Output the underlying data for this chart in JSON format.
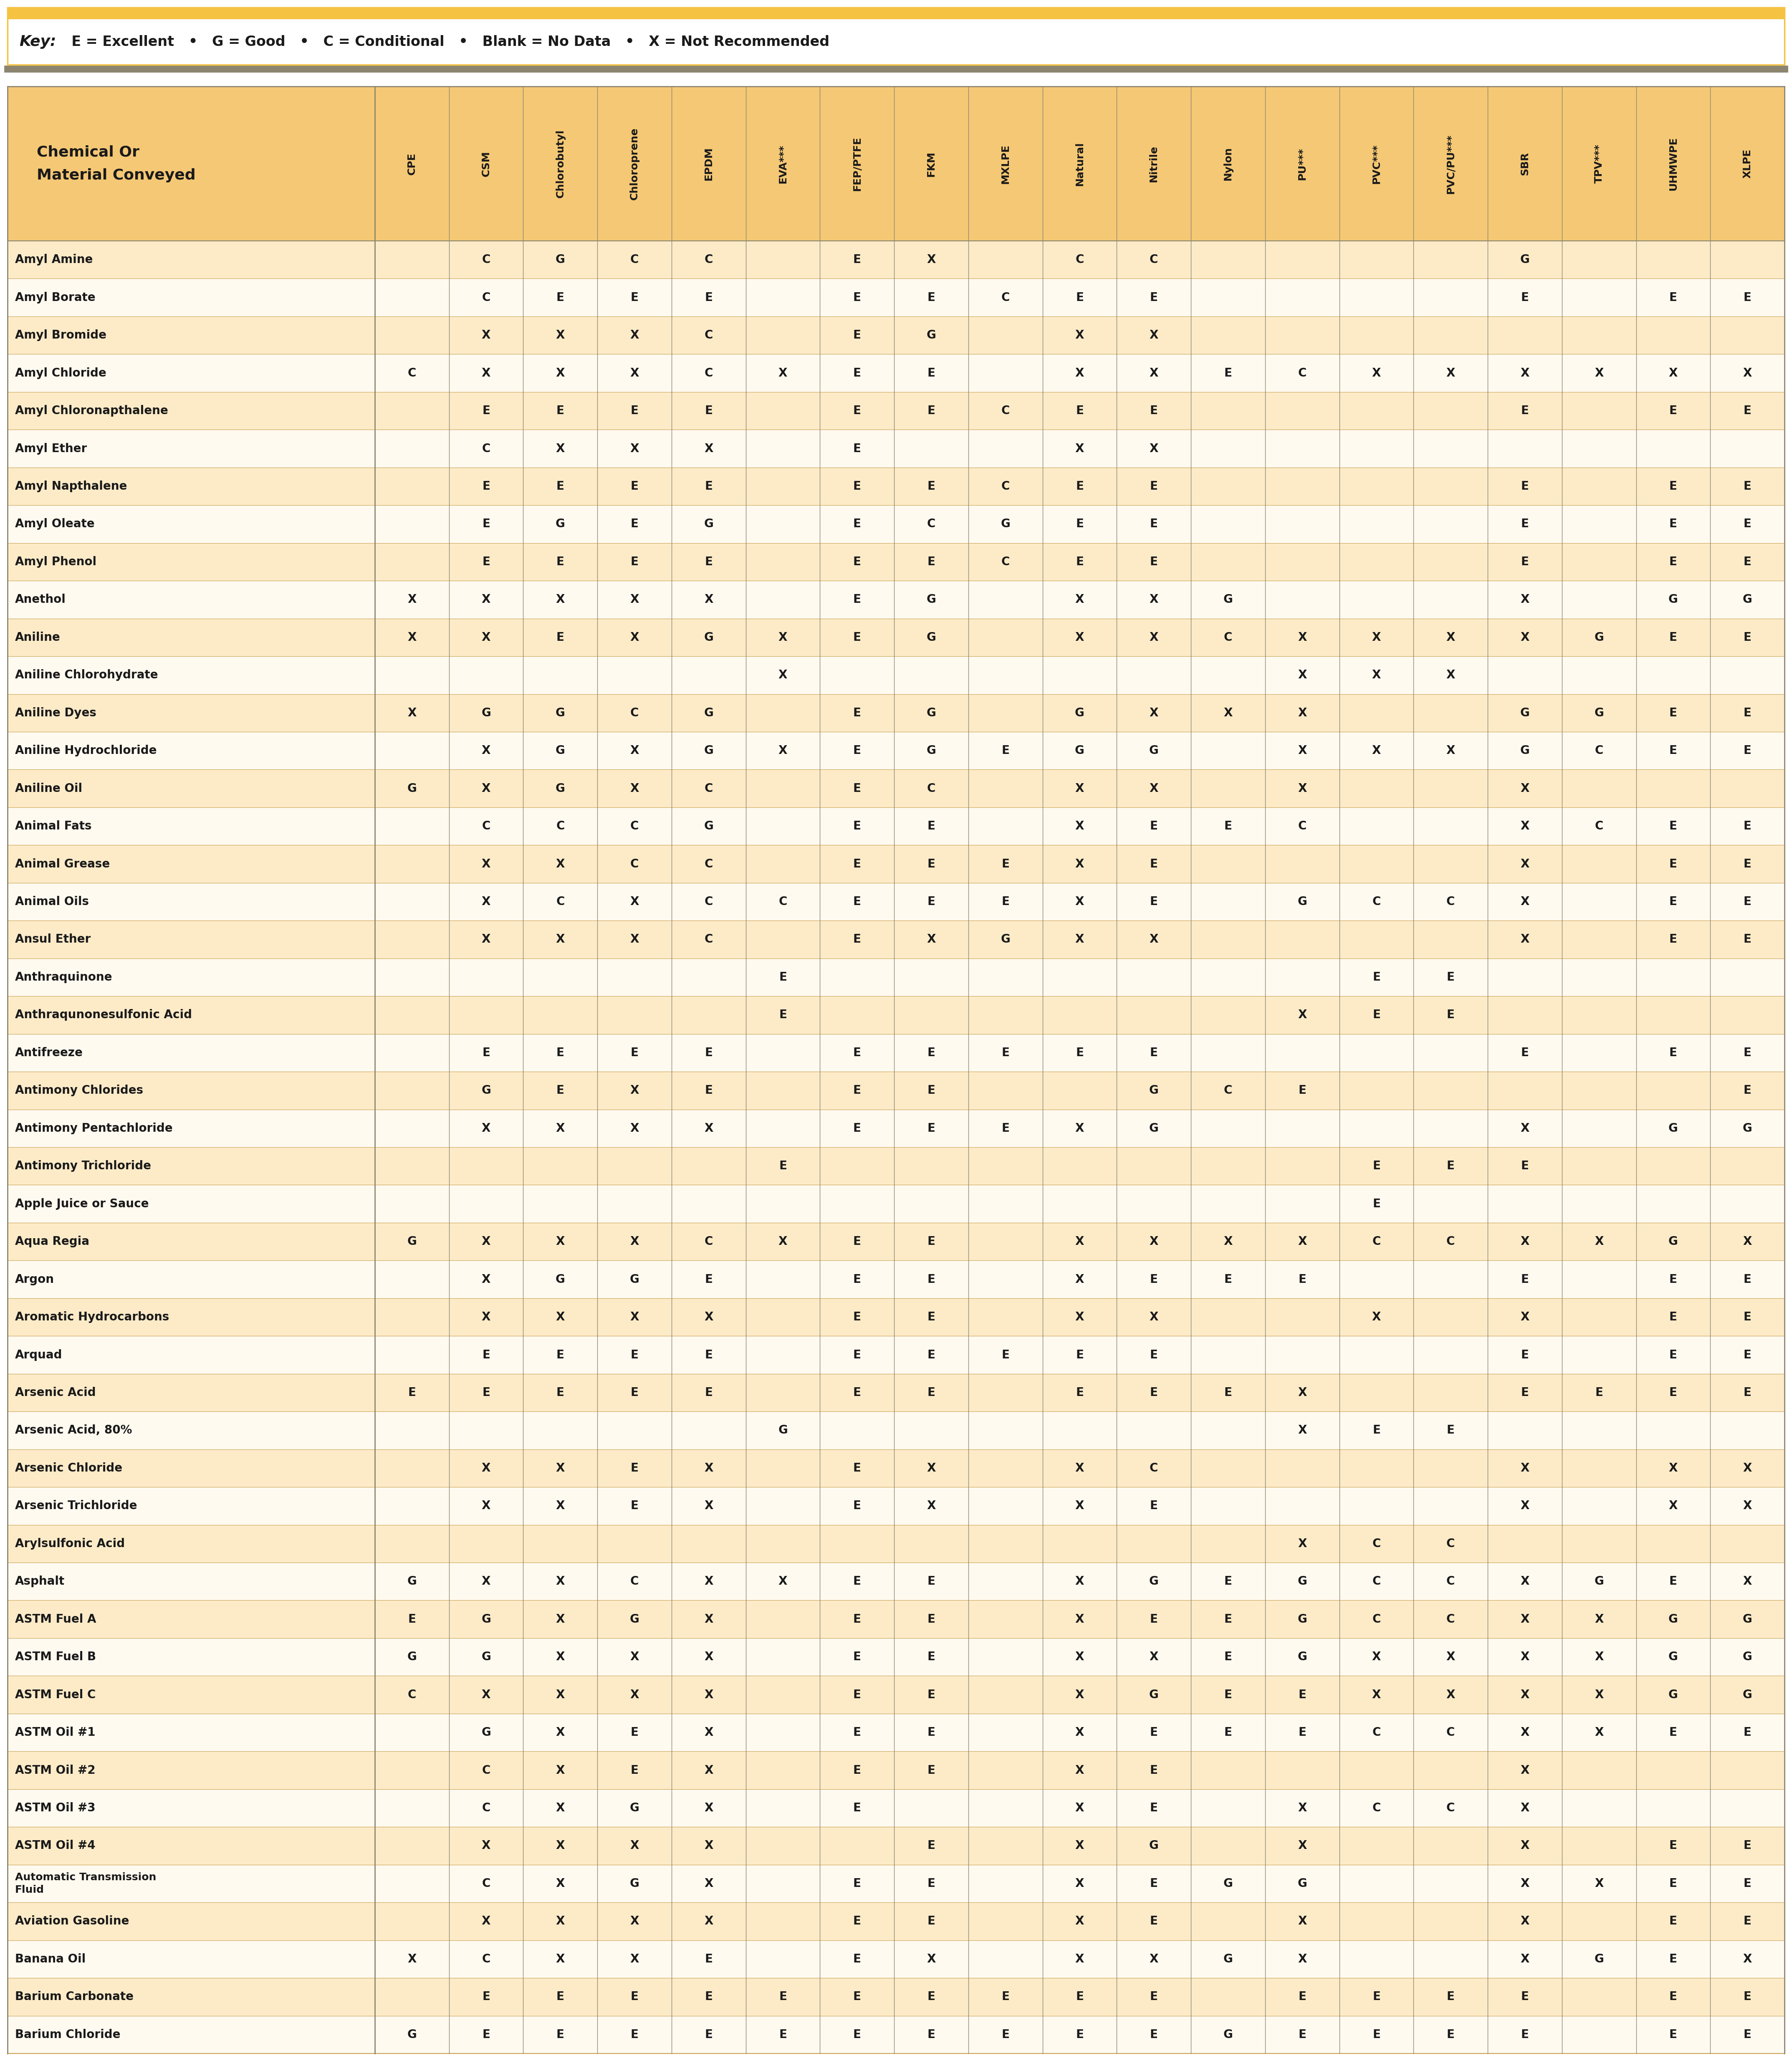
{
  "key_bold": "Key:",
  "key_rest": "  E = Excellent   •   G = Good   •   C = Conditional   •   Blank = No Data   •   X = Not Recommended",
  "header_col": "Chemical Or\nMaterial Conveyed",
  "columns": [
    "CPE",
    "CSM",
    "Chlorobutyl",
    "Chloroprene",
    "EPDM",
    "EVA***",
    "FEP/PTFE",
    "FKM",
    "MXLPE",
    "Natural",
    "Nitrile",
    "Nylon",
    "PU***",
    "PVC***",
    "PVC/PU***",
    "SBR",
    "TPV***",
    "UHMWPE",
    "XLPE"
  ],
  "rows": [
    [
      "Amyl Amine",
      "",
      "C",
      "G",
      "C",
      "C",
      "",
      "E",
      "X",
      "",
      "C",
      "C",
      "",
      "",
      "",
      "",
      "G",
      "",
      "",
      ""
    ],
    [
      "Amyl Borate",
      "",
      "C",
      "E",
      "E",
      "E",
      "",
      "E",
      "E",
      "C",
      "E",
      "E",
      "",
      "",
      "",
      "",
      "E",
      "",
      "E",
      "E"
    ],
    [
      "Amyl Bromide",
      "",
      "X",
      "X",
      "X",
      "C",
      "",
      "E",
      "G",
      "",
      "X",
      "X",
      "",
      "",
      "",
      "",
      "",
      "",
      "",
      ""
    ],
    [
      "Amyl Chloride",
      "C",
      "X",
      "X",
      "X",
      "C",
      "X",
      "E",
      "E",
      "",
      "X",
      "X",
      "E",
      "C",
      "X",
      "X",
      "X",
      "X",
      "X",
      "X"
    ],
    [
      "Amyl Chloronapthalene",
      "",
      "E",
      "E",
      "E",
      "E",
      "",
      "E",
      "E",
      "C",
      "E",
      "E",
      "",
      "",
      "",
      "",
      "E",
      "",
      "E",
      "E"
    ],
    [
      "Amyl Ether",
      "",
      "C",
      "X",
      "X",
      "X",
      "",
      "E",
      "",
      "",
      "X",
      "X",
      "",
      "",
      "",
      "",
      "",
      "",
      "",
      ""
    ],
    [
      "Amyl Napthalene",
      "",
      "E",
      "E",
      "E",
      "E",
      "",
      "E",
      "E",
      "C",
      "E",
      "E",
      "",
      "",
      "",
      "",
      "E",
      "",
      "E",
      "E"
    ],
    [
      "Amyl Oleate",
      "",
      "E",
      "G",
      "E",
      "G",
      "",
      "E",
      "C",
      "G",
      "E",
      "E",
      "",
      "",
      "",
      "",
      "E",
      "",
      "E",
      "E"
    ],
    [
      "Amyl Phenol",
      "",
      "E",
      "E",
      "E",
      "E",
      "",
      "E",
      "E",
      "C",
      "E",
      "E",
      "",
      "",
      "",
      "",
      "E",
      "",
      "E",
      "E"
    ],
    [
      "Anethol",
      "X",
      "X",
      "X",
      "X",
      "X",
      "",
      "E",
      "G",
      "",
      "X",
      "X",
      "G",
      "",
      "",
      "",
      "X",
      "",
      "G",
      "G"
    ],
    [
      "Aniline",
      "X",
      "X",
      "E",
      "X",
      "G",
      "X",
      "E",
      "G",
      "",
      "X",
      "X",
      "C",
      "X",
      "X",
      "X",
      "X",
      "G",
      "E",
      "E"
    ],
    [
      "Aniline Chlorohydrate",
      "",
      "",
      "",
      "",
      "",
      "X",
      "",
      "",
      "",
      "",
      "",
      "",
      "X",
      "X",
      "X",
      "",
      "",
      "",
      ""
    ],
    [
      "Aniline Dyes",
      "X",
      "G",
      "G",
      "C",
      "G",
      "",
      "E",
      "G",
      "",
      "G",
      "X",
      "X",
      "X",
      "",
      "",
      "G",
      "G",
      "E",
      "E"
    ],
    [
      "Aniline Hydrochloride",
      "",
      "X",
      "G",
      "X",
      "G",
      "X",
      "E",
      "G",
      "E",
      "G",
      "G",
      "",
      "X",
      "X",
      "X",
      "G",
      "C",
      "E",
      "E"
    ],
    [
      "Aniline Oil",
      "G",
      "X",
      "G",
      "X",
      "C",
      "",
      "E",
      "C",
      "",
      "X",
      "X",
      "",
      "X",
      "",
      "",
      "X",
      "",
      "",
      ""
    ],
    [
      "Animal Fats",
      "",
      "C",
      "C",
      "C",
      "G",
      "",
      "E",
      "E",
      "",
      "X",
      "E",
      "E",
      "C",
      "",
      "",
      "X",
      "C",
      "E",
      "E"
    ],
    [
      "Animal Grease",
      "",
      "X",
      "X",
      "C",
      "C",
      "",
      "E",
      "E",
      "E",
      "X",
      "E",
      "",
      "",
      "",
      "",
      "X",
      "",
      "E",
      "E"
    ],
    [
      "Animal Oils",
      "",
      "X",
      "C",
      "X",
      "C",
      "C",
      "E",
      "E",
      "E",
      "X",
      "E",
      "",
      "G",
      "C",
      "C",
      "X",
      "",
      "E",
      "E"
    ],
    [
      "Ansul Ether",
      "",
      "X",
      "X",
      "X",
      "C",
      "",
      "E",
      "X",
      "G",
      "X",
      "X",
      "",
      "",
      "",
      "",
      "X",
      "",
      "E",
      "E"
    ],
    [
      "Anthraquinone",
      "",
      "",
      "",
      "",
      "",
      "E",
      "",
      "",
      "",
      "",
      "",
      "",
      "",
      "E",
      "E",
      "",
      "",
      "",
      ""
    ],
    [
      "Anthraqunonesulfonic Acid",
      "",
      "",
      "",
      "",
      "",
      "E",
      "",
      "",
      "",
      "",
      "",
      "",
      "X",
      "E",
      "E",
      "",
      "",
      "",
      ""
    ],
    [
      "Antifreeze",
      "",
      "E",
      "E",
      "E",
      "E",
      "",
      "E",
      "E",
      "E",
      "E",
      "E",
      "",
      "",
      "",
      "",
      "E",
      "",
      "E",
      "E"
    ],
    [
      "Antimony Chlorides",
      "",
      "G",
      "E",
      "X",
      "E",
      "",
      "E",
      "E",
      "",
      "",
      "G",
      "C",
      "E",
      "",
      "",
      "",
      "",
      "",
      "E"
    ],
    [
      "Antimony Pentachloride",
      "",
      "X",
      "X",
      "X",
      "X",
      "",
      "E",
      "E",
      "E",
      "X",
      "G",
      "",
      "",
      "",
      "",
      "X",
      "",
      "G",
      "G"
    ],
    [
      "Antimony Trichloride",
      "",
      "",
      "",
      "",
      "",
      "E",
      "",
      "",
      "",
      "",
      "",
      "",
      "",
      "E",
      "E",
      "E",
      "",
      "",
      ""
    ],
    [
      "Apple Juice or Sauce",
      "",
      "",
      "",
      "",
      "",
      "",
      "",
      "",
      "",
      "",
      "",
      "",
      "",
      "E",
      "",
      "",
      "",
      "",
      ""
    ],
    [
      "Aqua Regia",
      "G",
      "X",
      "X",
      "X",
      "C",
      "X",
      "E",
      "E",
      "",
      "X",
      "X",
      "X",
      "X",
      "C",
      "C",
      "X",
      "X",
      "G",
      "X"
    ],
    [
      "Argon",
      "",
      "X",
      "G",
      "G",
      "E",
      "",
      "E",
      "E",
      "",
      "X",
      "E",
      "E",
      "E",
      "",
      "",
      "E",
      "",
      "E",
      "E"
    ],
    [
      "Aromatic Hydrocarbons",
      "",
      "X",
      "X",
      "X",
      "X",
      "",
      "E",
      "E",
      "",
      "X",
      "X",
      "",
      "",
      "X",
      "",
      "X",
      "",
      "E",
      "E"
    ],
    [
      "Arquad",
      "",
      "E",
      "E",
      "E",
      "E",
      "",
      "E",
      "E",
      "E",
      "E",
      "E",
      "",
      "",
      "",
      "",
      "E",
      "",
      "E",
      "E"
    ],
    [
      "Arsenic Acid",
      "E",
      "E",
      "E",
      "E",
      "E",
      "",
      "E",
      "E",
      "",
      "E",
      "E",
      "E",
      "X",
      "",
      "",
      "E",
      "E",
      "E",
      "E"
    ],
    [
      "Arsenic Acid, 80%",
      "",
      "",
      "",
      "",
      "",
      "G",
      "",
      "",
      "",
      "",
      "",
      "",
      "X",
      "E",
      "E",
      "",
      "",
      "",
      ""
    ],
    [
      "Arsenic Chloride",
      "",
      "X",
      "X",
      "E",
      "X",
      "",
      "E",
      "X",
      "",
      "X",
      "C",
      "",
      "",
      "",
      "",
      "X",
      "",
      "X",
      "X"
    ],
    [
      "Arsenic Trichloride",
      "",
      "X",
      "X",
      "E",
      "X",
      "",
      "E",
      "X",
      "",
      "X",
      "E",
      "",
      "",
      "",
      "",
      "X",
      "",
      "X",
      "X"
    ],
    [
      "Arylsulfonic Acid",
      "",
      "",
      "",
      "",
      "",
      "",
      "",
      "",
      "",
      "",
      "",
      "",
      "X",
      "C",
      "C",
      "",
      "",
      "",
      ""
    ],
    [
      "Asphalt",
      "G",
      "X",
      "X",
      "C",
      "X",
      "X",
      "E",
      "E",
      "",
      "X",
      "G",
      "E",
      "G",
      "C",
      "C",
      "X",
      "G",
      "E",
      "X"
    ],
    [
      "ASTM Fuel A",
      "E",
      "G",
      "X",
      "G",
      "X",
      "",
      "E",
      "E",
      "",
      "X",
      "E",
      "E",
      "G",
      "C",
      "C",
      "X",
      "X",
      "G",
      "G"
    ],
    [
      "ASTM Fuel B",
      "G",
      "G",
      "X",
      "X",
      "X",
      "",
      "E",
      "E",
      "",
      "X",
      "X",
      "E",
      "G",
      "X",
      "X",
      "X",
      "X",
      "G",
      "G"
    ],
    [
      "ASTM Fuel C",
      "C",
      "X",
      "X",
      "X",
      "X",
      "",
      "E",
      "E",
      "",
      "X",
      "G",
      "E",
      "E",
      "X",
      "X",
      "X",
      "X",
      "G",
      "G"
    ],
    [
      "ASTM Oil #1",
      "",
      "G",
      "X",
      "E",
      "X",
      "",
      "E",
      "E",
      "",
      "X",
      "E",
      "E",
      "E",
      "C",
      "C",
      "X",
      "X",
      "E",
      "E"
    ],
    [
      "ASTM Oil #2",
      "",
      "C",
      "X",
      "E",
      "X",
      "",
      "E",
      "E",
      "",
      "X",
      "E",
      "",
      "",
      "",
      "",
      "X",
      "",
      "",
      ""
    ],
    [
      "ASTM Oil #3",
      "",
      "C",
      "X",
      "G",
      "X",
      "",
      "E",
      "",
      "",
      "X",
      "E",
      "",
      "X",
      "C",
      "C",
      "X",
      "",
      "",
      ""
    ],
    [
      "ASTM Oil #4",
      "",
      "X",
      "X",
      "X",
      "X",
      "",
      "",
      "E",
      "",
      "X",
      "G",
      "",
      "X",
      "",
      "",
      "X",
      "",
      "E",
      "E"
    ],
    [
      "Automatic Transmission\nFluid",
      "",
      "C",
      "X",
      "G",
      "X",
      "",
      "E",
      "E",
      "",
      "X",
      "E",
      "G",
      "G",
      "",
      "",
      "X",
      "X",
      "E",
      "E"
    ],
    [
      "Aviation Gasoline",
      "",
      "X",
      "X",
      "X",
      "X",
      "",
      "E",
      "E",
      "",
      "X",
      "E",
      "",
      "X",
      "",
      "",
      "X",
      "",
      "E",
      "E"
    ],
    [
      "Banana Oil",
      "X",
      "C",
      "X",
      "X",
      "E",
      "",
      "E",
      "X",
      "",
      "X",
      "X",
      "G",
      "X",
      "",
      "",
      "X",
      "G",
      "E",
      "X"
    ],
    [
      "Barium Carbonate",
      "",
      "E",
      "E",
      "E",
      "E",
      "E",
      "E",
      "E",
      "E",
      "E",
      "E",
      "",
      "E",
      "E",
      "E",
      "E",
      "",
      "E",
      "E"
    ],
    [
      "Barium Chloride",
      "G",
      "E",
      "E",
      "E",
      "E",
      "E",
      "E",
      "E",
      "E",
      "E",
      "E",
      "G",
      "E",
      "E",
      "E",
      "E",
      "",
      "E",
      "E"
    ]
  ],
  "key_bar_color": "#F5C242",
  "key_bg": "#FFFFFF",
  "key_border": "#F5C242",
  "bg_col_header": "#F5C875",
  "bg_even": "#FDEBC8",
  "bg_odd": "#FFFAF0",
  "col_divider": "#8B8570",
  "row_divider": "#C8A050",
  "border_outer": "#C8A050",
  "text_color": "#1a1a1a"
}
